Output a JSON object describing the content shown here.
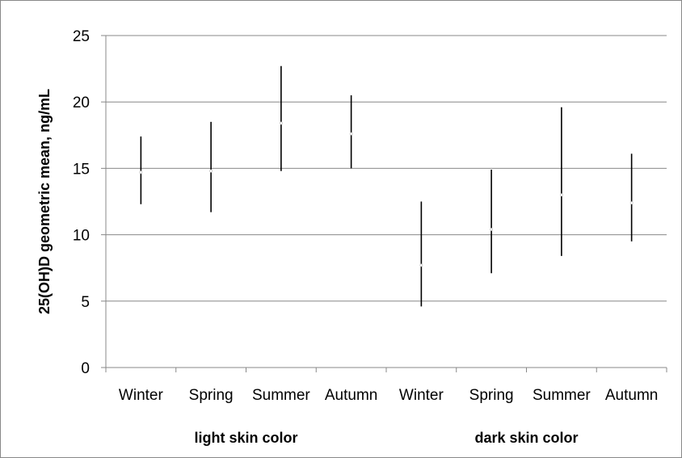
{
  "chart_data": {
    "type": "error-bar",
    "title": "",
    "ylabel": "25(OH)D geometric mean, ng/mL",
    "xlabel": "",
    "ylim": [
      0,
      25
    ],
    "yticks": [
      0,
      5,
      10,
      15,
      20,
      25
    ],
    "grid": true,
    "legend": "none",
    "groups": [
      "light skin color",
      "dark skin color"
    ],
    "categories": [
      "Winter",
      "Spring",
      "Summer",
      "Autumn",
      "Winter",
      "Spring",
      "Summer",
      "Autumn"
    ],
    "group_index": [
      0,
      0,
      0,
      0,
      1,
      1,
      1,
      1
    ],
    "mean": [
      14.7,
      14.8,
      18.4,
      17.6,
      7.7,
      10.4,
      13.0,
      12.4
    ],
    "lower": [
      12.3,
      11.7,
      14.8,
      15.0,
      4.6,
      7.1,
      8.4,
      9.5
    ],
    "upper": [
      17.4,
      18.5,
      22.7,
      20.5,
      12.5,
      14.9,
      19.6,
      16.1
    ],
    "colors": {
      "bar": "#000000",
      "grid": "#888888"
    }
  }
}
